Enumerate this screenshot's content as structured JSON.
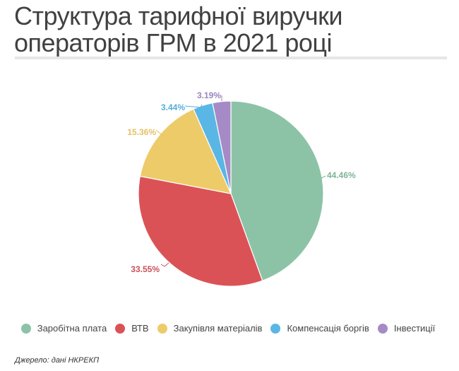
{
  "title": "Структура тарифної виручки операторів ГРМ в 2021 році",
  "source": "Джерело: дані НКРЕКП",
  "chart_data": {
    "type": "pie",
    "title": "Структура тарифної виручки операторів ГРМ в 2021 році",
    "categories": [
      "Заробітна плата",
      "ВТВ",
      "Закупівля матеріалів",
      "Компенсація боргів",
      "Інвестиції"
    ],
    "values": [
      44.46,
      33.55,
      15.36,
      3.44,
      3.19
    ],
    "labels": [
      "44.46%",
      "33.55%",
      "15.36%",
      "3.44%",
      "3.19%"
    ],
    "colors": [
      "#8cc3a6",
      "#db5256",
      "#eecb69",
      "#5ab6e5",
      "#a68ac6"
    ],
    "label_colors": [
      "#7fb598",
      "#c9535a",
      "#e5c067",
      "#58acd9",
      "#9a85bd"
    ],
    "legend_position": "bottom",
    "start_angle_deg": 0,
    "direction": "clockwise"
  },
  "legend": [
    {
      "label": "Заробітна плата",
      "color": "#8cc3a6"
    },
    {
      "label": "ВТВ",
      "color": "#db5256"
    },
    {
      "label": "Закупівля матеріалів",
      "color": "#eecb69"
    },
    {
      "label": "Компенсація боргів",
      "color": "#5ab6e5"
    },
    {
      "label": "Інвестиції",
      "color": "#a68ac6"
    }
  ]
}
